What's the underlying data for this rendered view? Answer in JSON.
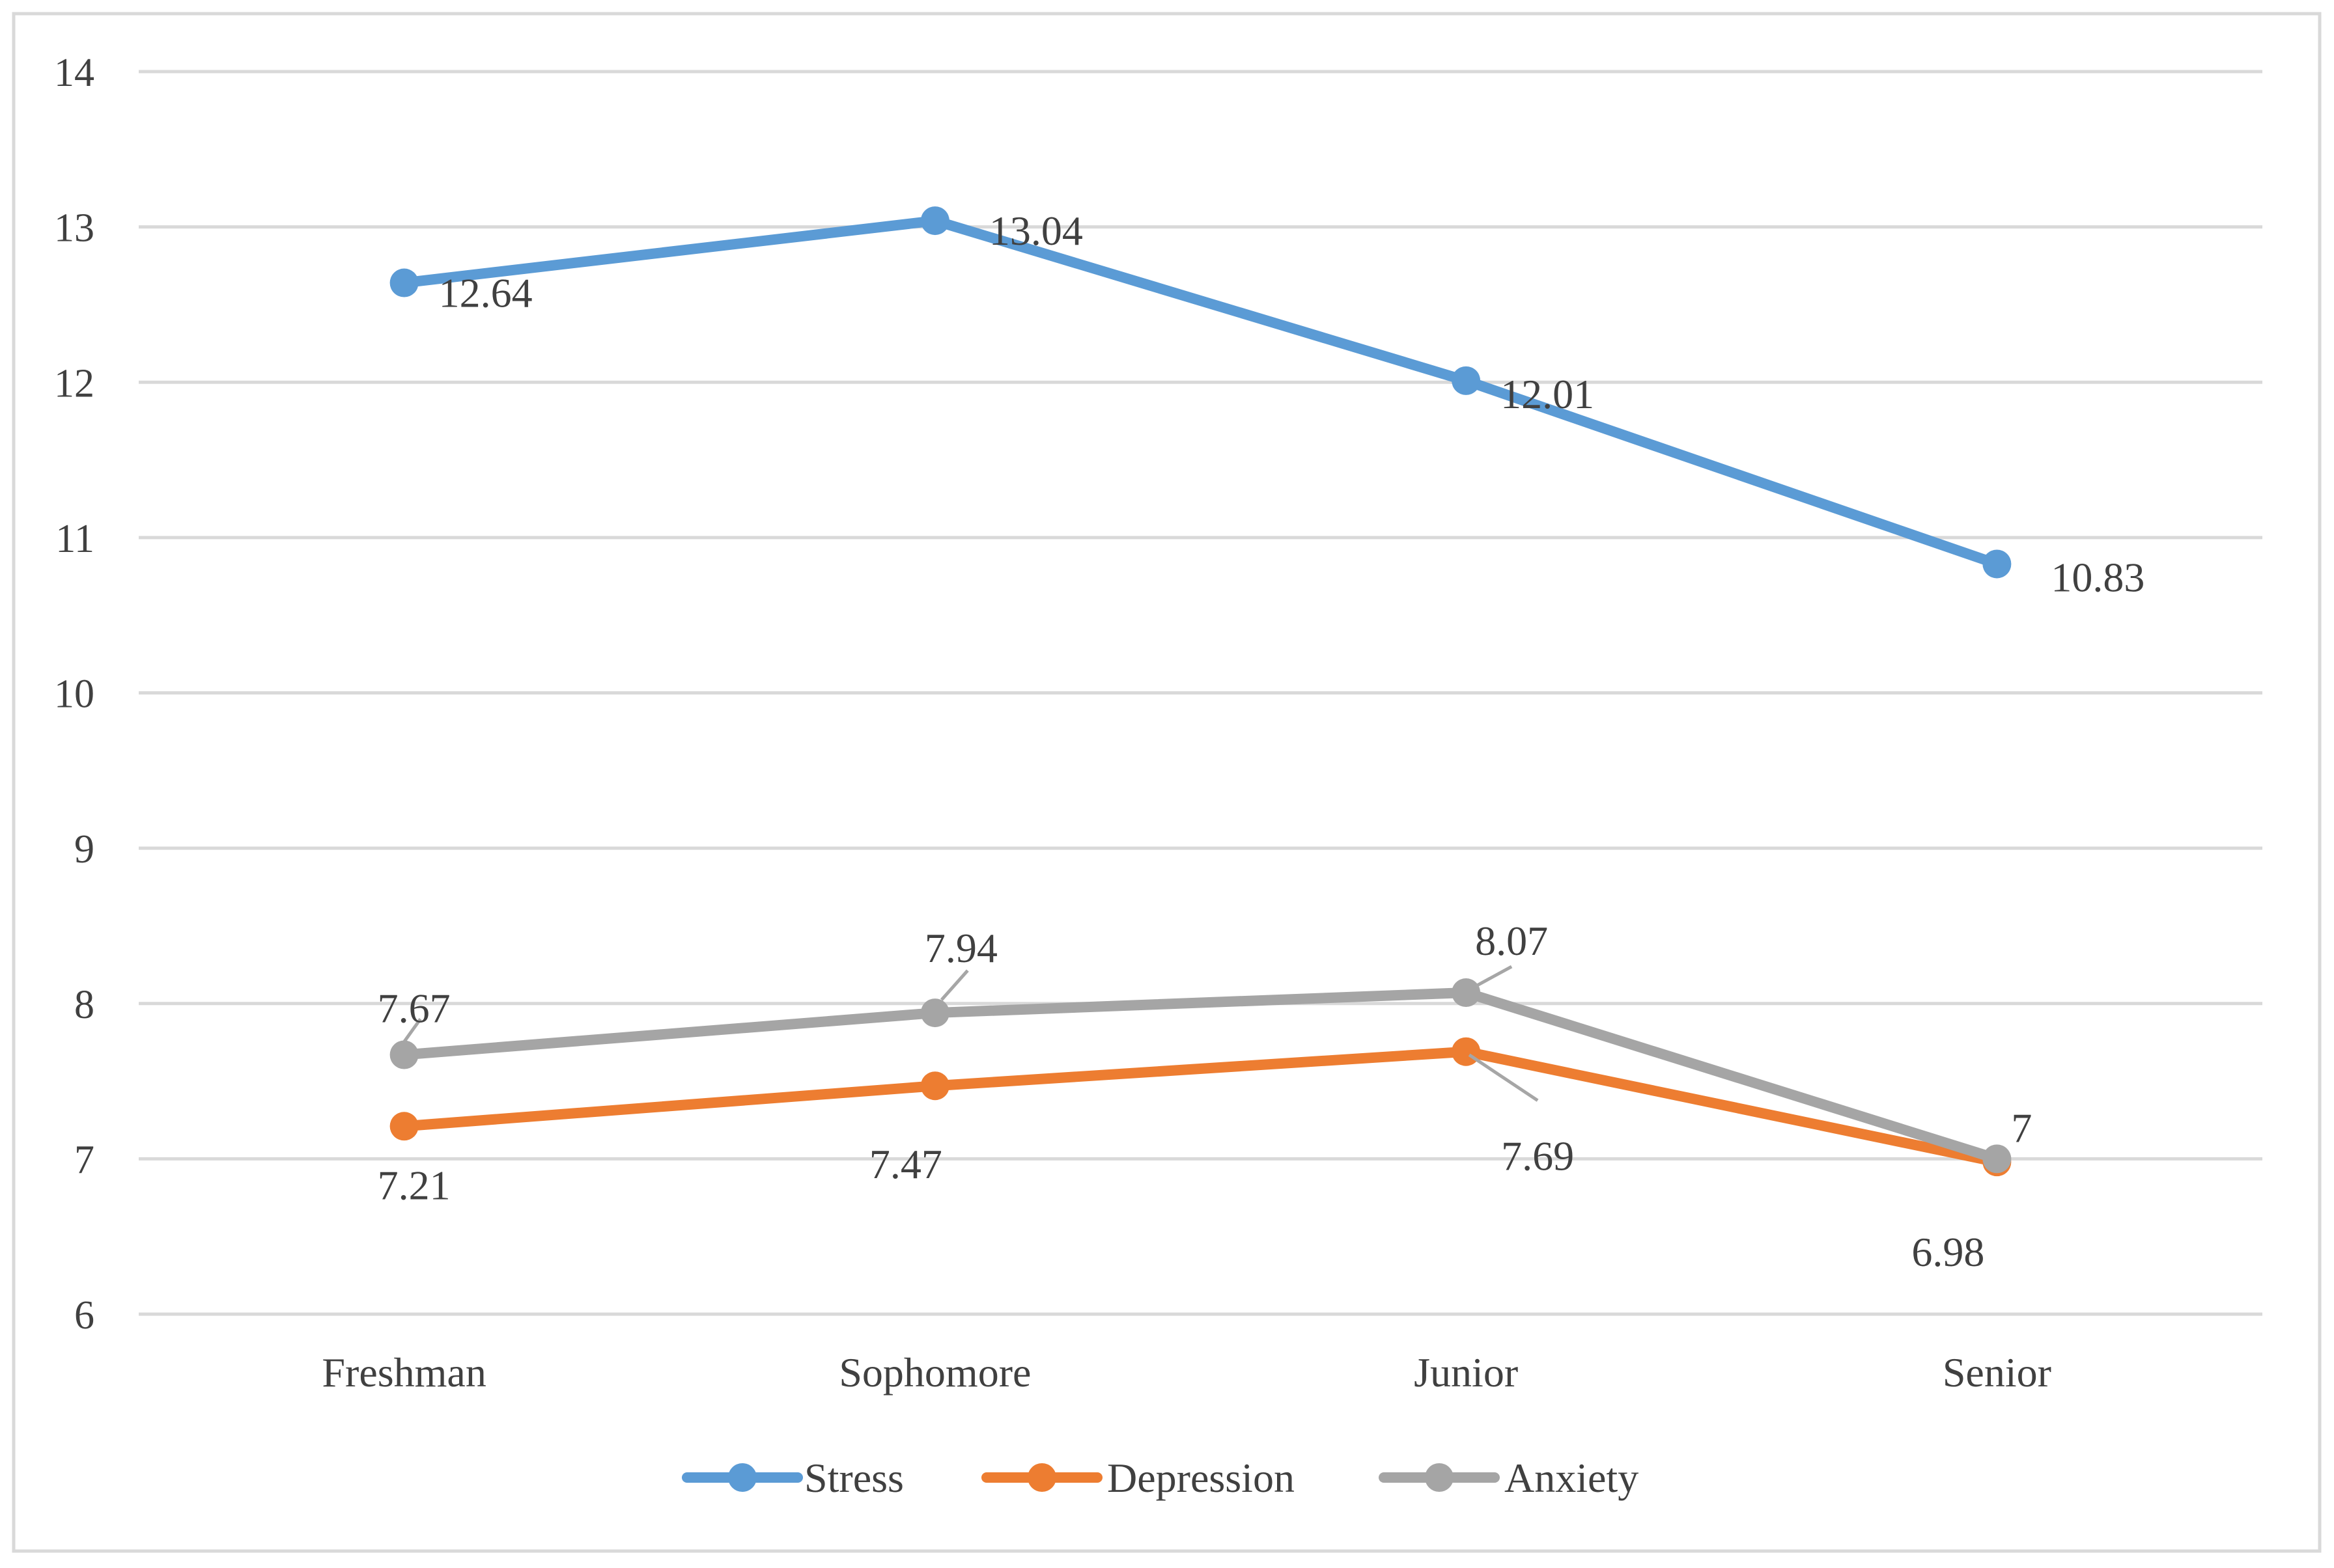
{
  "chart_data": {
    "type": "line",
    "title": "",
    "xlabel": "",
    "ylabel": "",
    "categories": [
      "Freshman",
      "Sophomore",
      "Junior",
      "Senior"
    ],
    "ylim": [
      6,
      14
    ],
    "yticks": [
      6,
      7,
      8,
      9,
      10,
      11,
      12,
      13,
      14
    ],
    "grid": true,
    "legend_position": "bottom",
    "series": [
      {
        "name": "Stress",
        "color": "#5B9BD5",
        "values": [
          12.64,
          13.04,
          12.01,
          10.83
        ],
        "labels": [
          "12.64",
          "13.04",
          "12.01",
          "10.83"
        ]
      },
      {
        "name": "Depression",
        "color": "#ED7D31",
        "values": [
          7.21,
          7.47,
          7.69,
          6.98
        ],
        "labels": [
          "7.21",
          "7.47",
          "7.69",
          "6.98"
        ]
      },
      {
        "name": "Anxiety",
        "color": "#A5A5A5",
        "values": [
          7.67,
          7.94,
          8.07,
          7.0
        ],
        "labels": [
          "7.67",
          "7.94",
          "8.07",
          "7"
        ]
      }
    ]
  }
}
